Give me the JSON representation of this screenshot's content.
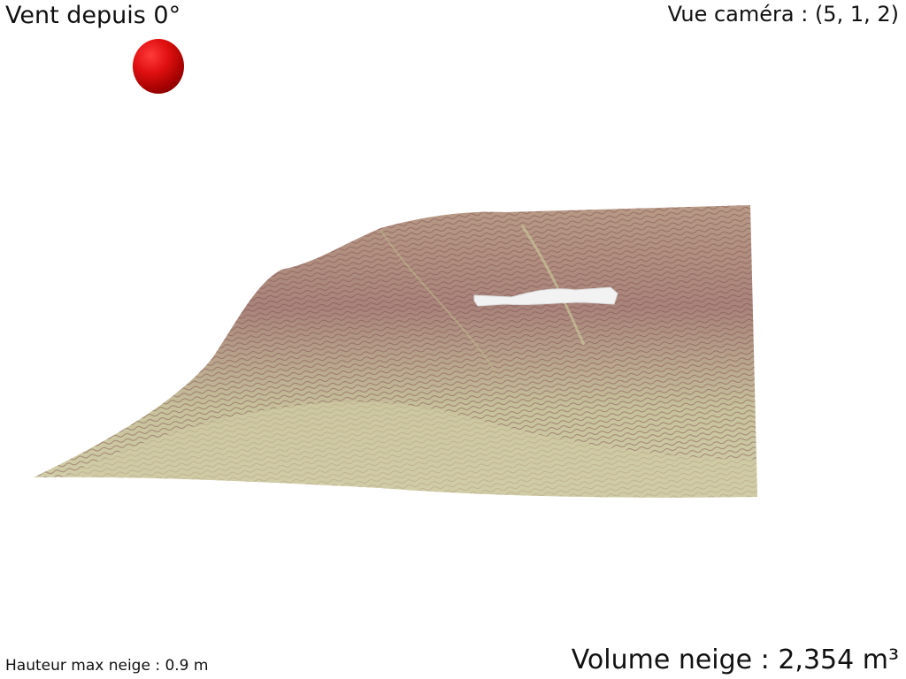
{
  "overlay": {
    "wind_direction": "Vent depuis 0°",
    "camera_view": "Vue caméra : (5, 1, 2)",
    "max_snow_height": "Hauteur max neige : 0.9 m",
    "snow_volume": "Volume neige : 2,354 m³"
  },
  "scene": {
    "wind_indicator_icon": "red-sphere",
    "terrain_base_color": "#c8c39a",
    "terrain_rock_color": "#8c5a5a",
    "snow_color": "#f2f2f2",
    "background_color": "#ffffff"
  }
}
